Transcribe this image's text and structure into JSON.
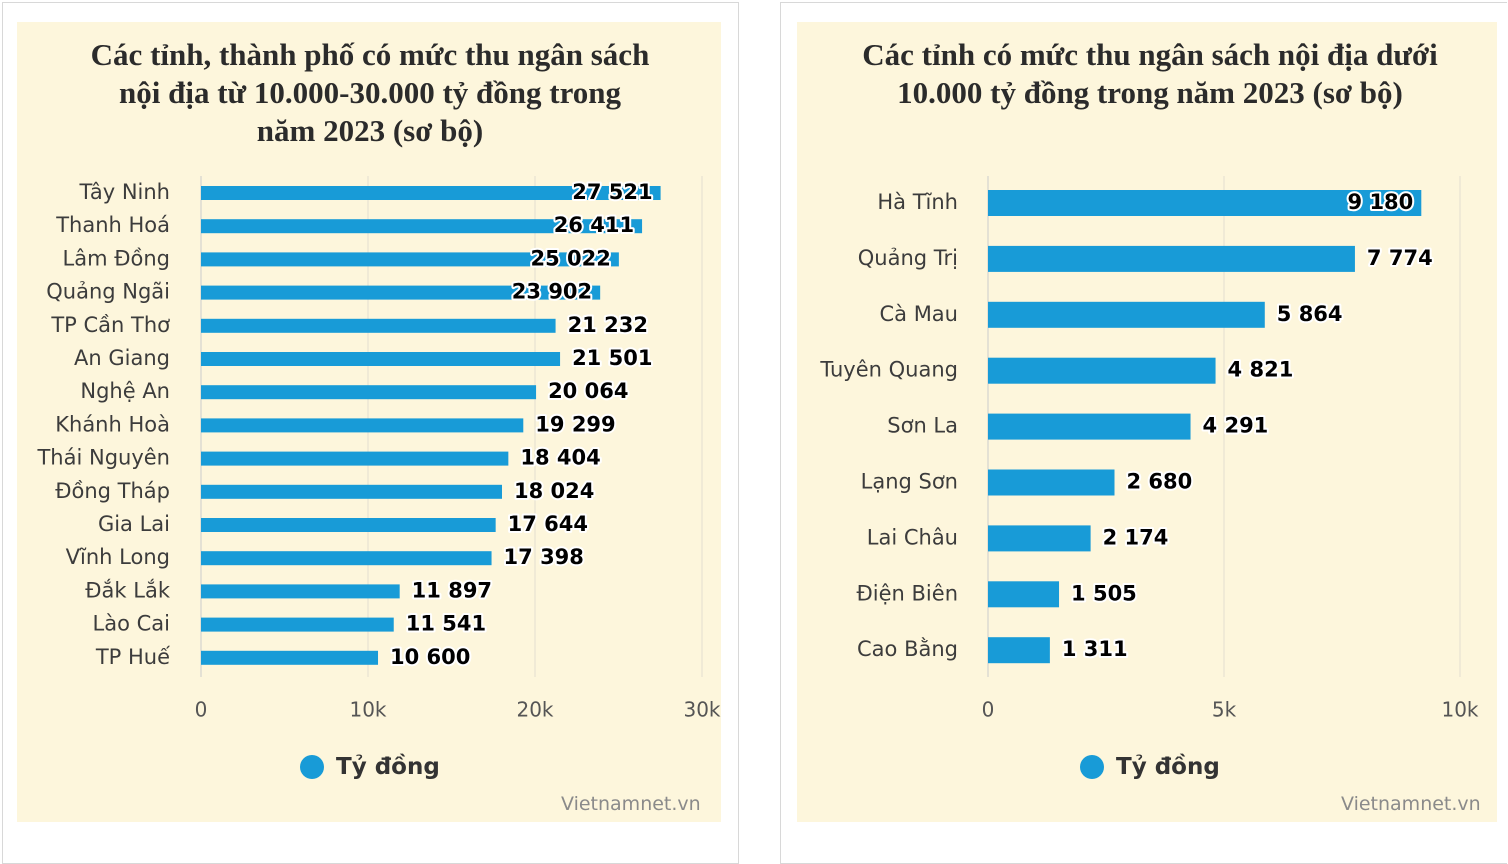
{
  "chart_data": [
    {
      "type": "bar",
      "orientation": "horizontal",
      "title": "Các tỉnh, thành phố có mức thu ngân sách nội địa từ 10.000-30.000 tỷ đồng trong năm 2023 (sơ bộ)",
      "categories": [
        "Tây Ninh",
        "Thanh Hoá",
        "Lâm Đồng",
        "Quảng Ngãi",
        "TP Cần Thơ",
        "An Giang",
        "Nghệ An",
        "Khánh Hoà",
        "Thái Nguyên",
        "Đồng Tháp",
        "Gia Lai",
        "Vĩnh Long",
        "Đắk Lắk",
        "Lào Cai",
        "TP Huế"
      ],
      "series": [
        {
          "name": "Tỷ đồng",
          "values": [
            27521,
            26411,
            25022,
            23902,
            21232,
            21501,
            20064,
            19299,
            18404,
            18024,
            17644,
            17398,
            11897,
            11541,
            10600
          ]
        }
      ],
      "value_labels": [
        "27 521",
        "26 411",
        "25 022",
        "23 902",
        "21 232",
        "21 501",
        "20 064",
        "19 299",
        "18 404",
        "18 024",
        "17 644",
        "17 398",
        "11 897",
        "11 541",
        "10 600"
      ],
      "xlim": [
        0,
        30000
      ],
      "x_ticks": [
        0,
        10000,
        20000,
        30000
      ],
      "x_tick_labels": [
        "0",
        "10k",
        "20k",
        "30k"
      ],
      "grid": true,
      "legend_position": "bottom",
      "bar_color": "#189bd7",
      "credit": "Vietnamnet.vn"
    },
    {
      "type": "bar",
      "orientation": "horizontal",
      "title": "Các tỉnh có mức thu ngân sách nội địa dưới 10.000 tỷ đồng trong năm 2023 (sơ bộ)",
      "categories": [
        "Hà Tĩnh",
        "Quảng Trị",
        "Cà Mau",
        "Tuyên Quang",
        "Sơn La",
        "Lạng Sơn",
        "Lai Châu",
        "Điện Biên",
        "Cao Bằng"
      ],
      "series": [
        {
          "name": "Tỷ đồng",
          "values": [
            9180,
            7774,
            5864,
            4821,
            4291,
            2680,
            2174,
            1505,
            1311
          ]
        }
      ],
      "value_labels": [
        "9 180",
        "7 774",
        "5 864",
        "4 821",
        "4 291",
        "2 680",
        "2 174",
        "1 505",
        "1 311"
      ],
      "xlim": [
        0,
        10000
      ],
      "x_ticks": [
        0,
        5000,
        10000
      ],
      "x_tick_labels": [
        "0",
        "5k",
        "10k"
      ],
      "grid": true,
      "legend_position": "bottom",
      "bar_color": "#189bd7",
      "credit": "Vietnamnet.vn"
    }
  ]
}
